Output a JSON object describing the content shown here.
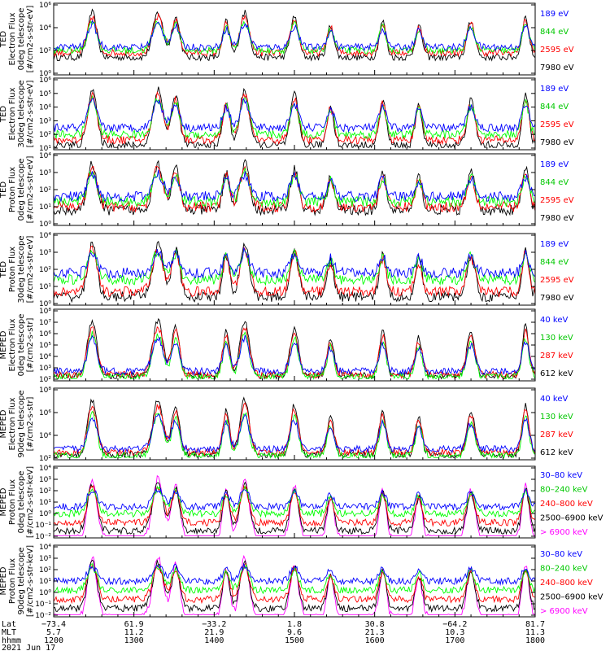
{
  "figure": {
    "x_axis": {
      "row_labels": [
        "Lat",
        "MLT",
        "hhmm"
      ],
      "ticks": [
        {
          "Lat": "−73.4",
          "MLT": "5.7",
          "hhmm": "1200"
        },
        {
          "Lat": "61.9",
          "MLT": "11.2",
          "hhmm": "1300"
        },
        {
          "Lat": "−33.2",
          "MLT": "21.9",
          "hhmm": "1400"
        },
        {
          "Lat": "1.8",
          "MLT": "9.6",
          "hhmm": "1500"
        },
        {
          "Lat": "30.8",
          "MLT": "21.3",
          "hhmm": "1600"
        },
        {
          "Lat": "−64.2",
          "MLT": "10.3",
          "hhmm": "1700"
        },
        {
          "Lat": "81.7",
          "MLT": "11.3",
          "hhmm": "1800"
        }
      ],
      "date": "2021 Jun 17"
    }
  },
  "colors": {
    "blue": "#0000ff",
    "red": "#ff0000",
    "green": "#00ff00",
    "black": "#000000",
    "magenta": "#ff00ff"
  },
  "chart_data": [
    {
      "type": "line",
      "ylabel": [
        "TED",
        "Electron Flux",
        "0deg telescope",
        "[#/cm2-s-str-eV]"
      ],
      "y_scale": "log",
      "y_ticks": [
        {
          "e": 0,
          "t": "10⁰"
        },
        {
          "e": 2,
          "t": "10²"
        },
        {
          "e": 4,
          "t": "10⁴"
        },
        {
          "e": 6,
          "t": "10⁶"
        }
      ],
      "series": [
        {
          "name": "7980 eV",
          "color": "black",
          "base": 1.4
        },
        {
          "name": "2595 eV",
          "color": "red",
          "base": 1.8
        },
        {
          "name": "844 eV",
          "color": "green",
          "base": 2.0
        },
        {
          "name": "189 eV",
          "color": "blue",
          "base": 2.3
        }
      ]
    },
    {
      "type": "line",
      "ylabel": [
        "TED",
        "Electron Flux",
        "30deg telescope",
        "[#/cm2-s-str-eV]"
      ],
      "y_scale": "log",
      "y_ticks": [
        {
          "e": 1,
          "t": "10¹"
        },
        {
          "e": 2,
          "t": "10²"
        },
        {
          "e": 3,
          "t": "10³"
        },
        {
          "e": 4,
          "t": "10⁴"
        },
        {
          "e": 5,
          "t": "10⁵"
        },
        {
          "e": 6,
          "t": "10⁶"
        }
      ],
      "series": [
        {
          "name": "7980 eV",
          "color": "black",
          "base": 1.2
        },
        {
          "name": "2595 eV",
          "color": "red",
          "base": 1.6
        },
        {
          "name": "844 eV",
          "color": "green",
          "base": 2.0
        },
        {
          "name": "189 eV",
          "color": "blue",
          "base": 2.5
        }
      ]
    },
    {
      "type": "line",
      "ylabel": [
        "TED",
        "Proton Flux",
        "0deg telescope",
        "[#/cm2-s-str-eV]"
      ],
      "y_scale": "log",
      "y_ticks": [
        {
          "e": 0,
          "t": "10⁰"
        },
        {
          "e": 1,
          "t": "10¹"
        },
        {
          "e": 2,
          "t": "10²"
        },
        {
          "e": 3,
          "t": "10³"
        },
        {
          "e": 4,
          "t": "10⁴"
        }
      ],
      "series": [
        {
          "name": "7980 eV",
          "color": "black",
          "base": 0.8
        },
        {
          "name": "2595 eV",
          "color": "red",
          "base": 1.0
        },
        {
          "name": "844 eV",
          "color": "green",
          "base": 1.3
        },
        {
          "name": "189 eV",
          "color": "blue",
          "base": 1.6
        }
      ]
    },
    {
      "type": "line",
      "ylabel": [
        "TED",
        "Proton Flux",
        "30deg telescope",
        "[#/cm2-s-str-eV]"
      ],
      "y_scale": "log",
      "y_ticks": [
        {
          "e": 0,
          "t": "10⁰"
        },
        {
          "e": 1,
          "t": "10¹"
        },
        {
          "e": 2,
          "t": "10²"
        },
        {
          "e": 3,
          "t": "10³"
        },
        {
          "e": 4,
          "t": "10⁴"
        }
      ],
      "series": [
        {
          "name": "7980 eV",
          "color": "black",
          "base": 0.4
        },
        {
          "name": "2595 eV",
          "color": "red",
          "base": 0.7
        },
        {
          "name": "844 eV",
          "color": "green",
          "base": 1.4
        },
        {
          "name": "189 eV",
          "color": "blue",
          "base": 1.8
        }
      ]
    },
    {
      "type": "line",
      "ylabel": [
        "MEPED",
        "Electron Flux",
        "0deg telescope",
        "[#/cm2-s-str]"
      ],
      "y_scale": "log",
      "y_ticks": [
        {
          "e": 2,
          "t": "10²"
        },
        {
          "e": 3,
          "t": "10³"
        },
        {
          "e": 4,
          "t": "10⁴"
        },
        {
          "e": 5,
          "t": "10⁵"
        },
        {
          "e": 6,
          "t": "10⁶"
        },
        {
          "e": 7,
          "t": "10⁷"
        },
        {
          "e": 8,
          "t": "10⁸"
        }
      ],
      "series": [
        {
          "name": "612 keV",
          "color": "black",
          "base": 2.3
        },
        {
          "name": "287 keV",
          "color": "red",
          "base": 2.4
        },
        {
          "name": "130 keV",
          "color": "green",
          "base": 2.2
        },
        {
          "name": "40 keV",
          "color": "blue",
          "base": 2.7
        }
      ]
    },
    {
      "type": "line",
      "ylabel": [
        "MEPED",
        "Electron Flux",
        "90deg telescope",
        "[#/cm2-s-str]"
      ],
      "y_scale": "log",
      "y_ticks": [
        {
          "e": 2,
          "t": "10²"
        },
        {
          "e": 4,
          "t": "10⁴"
        },
        {
          "e": 6,
          "t": "10⁶"
        },
        {
          "e": 8,
          "t": "10⁸"
        }
      ],
      "series": [
        {
          "name": "612 keV",
          "color": "black",
          "base": 2.3
        },
        {
          "name": "287 keV",
          "color": "red",
          "base": 2.5
        },
        {
          "name": "130 keV",
          "color": "green",
          "base": 2.2
        },
        {
          "name": "40 keV",
          "color": "blue",
          "base": 2.8
        }
      ]
    },
    {
      "type": "line",
      "ylabel": [
        "MEPED",
        "Proton Flux",
        "0deg telescope",
        "[#/cm2-s-str-keV]"
      ],
      "y_scale": "log",
      "y_ticks": [
        {
          "e": -2,
          "t": "10⁻²"
        },
        {
          "e": -1,
          "t": "10⁻¹"
        },
        {
          "e": 0,
          "t": "10⁰"
        },
        {
          "e": 1,
          "t": "10¹"
        },
        {
          "e": 2,
          "t": "10²"
        },
        {
          "e": 3,
          "t": "10³"
        },
        {
          "e": 4,
          "t": "10⁴"
        }
      ],
      "series": [
        {
          "name": "> 6900 keV",
          "color": "magenta",
          "base": -2.2
        },
        {
          "name": "2500–6900 keV",
          "color": "black",
          "base": -1.5
        },
        {
          "name": "240–800 keV",
          "color": "red",
          "base": -0.8
        },
        {
          "name": "80–240 keV",
          "color": "green",
          "base": 0.0
        },
        {
          "name": "30–80 keV",
          "color": "blue",
          "base": 0.6
        }
      ]
    },
    {
      "type": "line",
      "ylabel": [
        "MEPED",
        "Proton Flux",
        "90deg telescope",
        "[#/cm2-s-str-keV]"
      ],
      "y_scale": "log",
      "y_ticks": [
        {
          "e": -2,
          "t": "10⁻²"
        },
        {
          "e": -1,
          "t": "10⁻¹"
        },
        {
          "e": 0,
          "t": "10⁰"
        },
        {
          "e": 1,
          "t": "10¹"
        },
        {
          "e": 2,
          "t": "10²"
        },
        {
          "e": 3,
          "t": "10³"
        },
        {
          "e": 4,
          "t": "10⁴"
        }
      ],
      "series": [
        {
          "name": "> 6900 keV",
          "color": "magenta",
          "base": -2.2
        },
        {
          "name": "2500–6900 keV",
          "color": "black",
          "base": -1.4
        },
        {
          "name": "240–800 keV",
          "color": "red",
          "base": -0.6
        },
        {
          "name": "80–240 keV",
          "color": "green",
          "base": 0.2
        },
        {
          "name": "30–80 keV",
          "color": "blue",
          "base": 1.0
        }
      ]
    }
  ]
}
